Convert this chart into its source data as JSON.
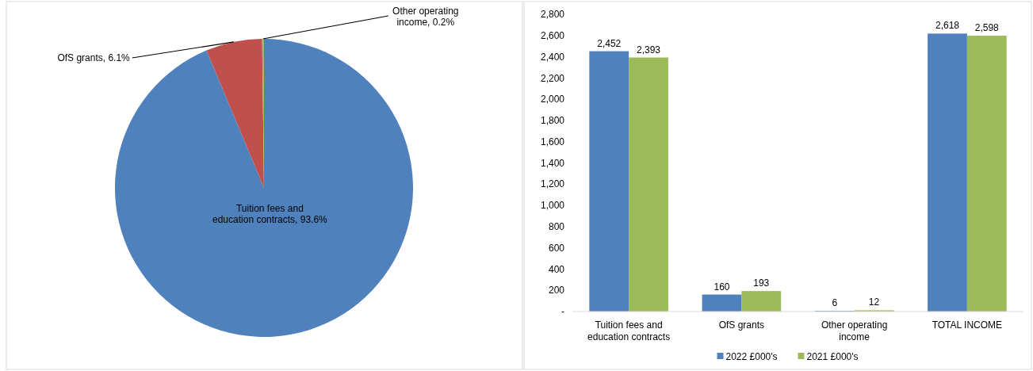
{
  "chart_data": [
    {
      "type": "pie",
      "categories": [
        "Tuition fees and education contracts",
        "OfS grants",
        "Other operating income"
      ],
      "values": [
        93.6,
        6.1,
        0.2
      ],
      "colors": [
        "#4f81bd",
        "#c0504d",
        "#9bbb59"
      ],
      "value_labels": [
        "93.6%",
        "6.1%",
        "0.2%"
      ]
    },
    {
      "type": "bar",
      "categories": [
        "Tuition fees and education contracts",
        "OfS grants",
        "Other operating income",
        "TOTAL INCOME"
      ],
      "series": [
        {
          "name": "2022 £000's",
          "color": "#4f81bd",
          "values": [
            2452,
            160,
            6,
            2618
          ],
          "value_labels": [
            "2,452",
            "160",
            "6",
            "2,618"
          ]
        },
        {
          "name": "2021 £000's",
          "color": "#9bbb59",
          "values": [
            2393,
            193,
            12,
            2598
          ],
          "value_labels": [
            "2,393",
            "193",
            "12",
            "2,598"
          ]
        }
      ],
      "ylim": [
        0,
        2800
      ],
      "yticks": [
        {
          "value": 0,
          "label": "-"
        },
        {
          "value": 200,
          "label": "200"
        },
        {
          "value": 400,
          "label": "400"
        },
        {
          "value": 600,
          "label": "600"
        },
        {
          "value": 800,
          "label": "800"
        },
        {
          "value": 1000,
          "label": "1,000"
        },
        {
          "value": 1200,
          "label": "1,200"
        },
        {
          "value": 1400,
          "label": "1,400"
        },
        {
          "value": 1600,
          "label": "1,600"
        },
        {
          "value": 1800,
          "label": "1,800"
        },
        {
          "value": 2000,
          "label": "2,000"
        },
        {
          "value": 2200,
          "label": "2,200"
        },
        {
          "value": 2400,
          "label": "2,400"
        },
        {
          "value": 2600,
          "label": "2,600"
        },
        {
          "value": 2800,
          "label": "2,800"
        }
      ],
      "legend": "bottom"
    }
  ]
}
